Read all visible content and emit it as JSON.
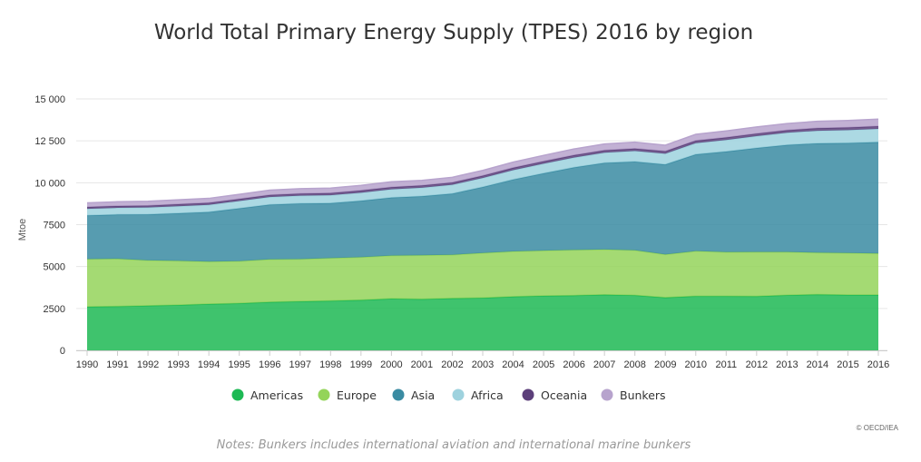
{
  "chart_data": {
    "type": "area",
    "stacked": true,
    "title": "World Total Primary Energy Supply (TPES) 2016 by region",
    "ylabel": "Mtoe",
    "xlabel": "",
    "ylim": [
      0,
      15000
    ],
    "y_ticks": [
      "0",
      "2500",
      "5000",
      "7500",
      "10 000",
      "12 500",
      "15 000"
    ],
    "y_tick_values": [
      0,
      2500,
      5000,
      7500,
      10000,
      12500,
      15000
    ],
    "x": [
      "1990",
      "1991",
      "1992",
      "1993",
      "1994",
      "1995",
      "1996",
      "1997",
      "1998",
      "1999",
      "2000",
      "2001",
      "2002",
      "2003",
      "2004",
      "2005",
      "2006",
      "2007",
      "2008",
      "2009",
      "2010",
      "2011",
      "2012",
      "2013",
      "2014",
      "2015",
      "2016"
    ],
    "grid": "horizontal",
    "legend_position": "bottom",
    "series": [
      {
        "name": "Americas",
        "color": "#1db954",
        "values": [
          2600,
          2620,
          2660,
          2700,
          2760,
          2800,
          2880,
          2920,
          2950,
          3000,
          3080,
          3050,
          3100,
          3130,
          3200,
          3250,
          3270,
          3320,
          3280,
          3150,
          3230,
          3230,
          3220,
          3290,
          3330,
          3300,
          3300
        ]
      },
      {
        "name": "Europe",
        "color": "#94d45a",
        "values": [
          2840,
          2840,
          2710,
          2640,
          2530,
          2520,
          2550,
          2520,
          2550,
          2560,
          2570,
          2620,
          2600,
          2680,
          2700,
          2700,
          2720,
          2700,
          2690,
          2570,
          2690,
          2630,
          2650,
          2580,
          2500,
          2510,
          2480
        ]
      },
      {
        "name": "Asia",
        "color": "#3a8ba2",
        "values": [
          2610,
          2640,
          2740,
          2840,
          2960,
          3150,
          3260,
          3320,
          3280,
          3360,
          3460,
          3520,
          3650,
          3930,
          4290,
          4610,
          4920,
          5160,
          5290,
          5370,
          5770,
          6000,
          6200,
          6380,
          6520,
          6560,
          6640
        ]
      },
      {
        "name": "Africa",
        "color": "#9ed2de",
        "values": [
          390,
          400,
          410,
          420,
          430,
          440,
          455,
          465,
          475,
          485,
          495,
          510,
          525,
          540,
          560,
          575,
          590,
          610,
          630,
          640,
          670,
          690,
          710,
          730,
          750,
          770,
          790
        ]
      },
      {
        "name": "Oceania",
        "color": "#5c3f7a",
        "values": [
          110,
          112,
          113,
          115,
          117,
          120,
          122,
          125,
          127,
          130,
          132,
          133,
          135,
          137,
          140,
          142,
          144,
          145,
          147,
          148,
          150,
          151,
          152,
          153,
          154,
          155,
          156
        ]
      },
      {
        "name": "Bunkers",
        "color": "#b7a3cd",
        "values": [
          250,
          255,
          260,
          265,
          270,
          280,
          290,
          295,
          300,
          310,
          320,
          310,
          315,
          320,
          340,
          355,
          370,
          380,
          385,
          360,
          380,
          390,
          395,
          400,
          410,
          420,
          430
        ]
      }
    ]
  },
  "credit": "© OECD/IEA",
  "note": "Notes: Bunkers includes international aviation and international marine bunkers"
}
